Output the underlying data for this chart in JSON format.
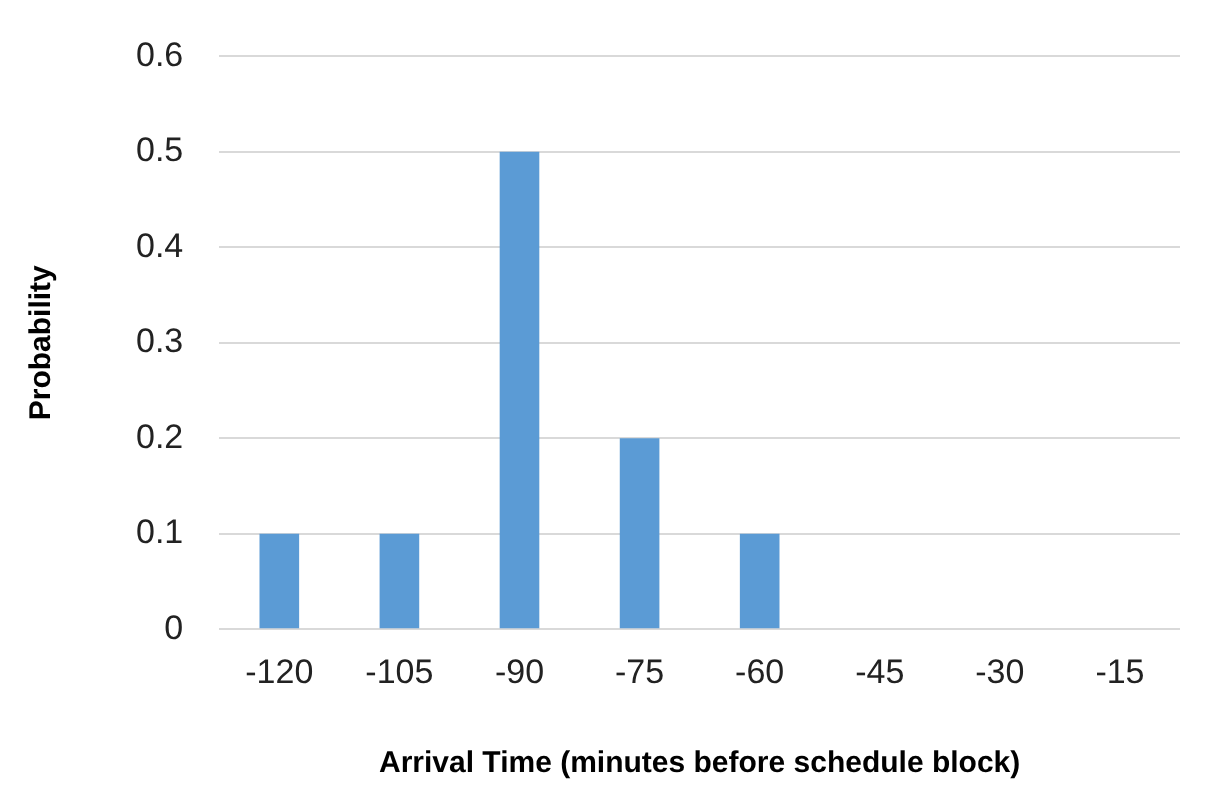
{
  "chart_data": {
    "type": "bar",
    "xlabel": "Arrival Time (minutes before schedule block)",
    "ylabel": "Probability",
    "categories": [
      "-120",
      "-105",
      "-90",
      "-75",
      "-60",
      "-45",
      "-30",
      "-15"
    ],
    "values": [
      0.1,
      0.1,
      0.5,
      0.2,
      0.1,
      0,
      0,
      0
    ],
    "color": "#5b9bd5",
    "ylim": [
      0,
      0.6
    ],
    "yticks": [
      0,
      0.1,
      0.2,
      0.3,
      0.4,
      0.5,
      0.6
    ],
    "grid": "y",
    "legend": false
  }
}
